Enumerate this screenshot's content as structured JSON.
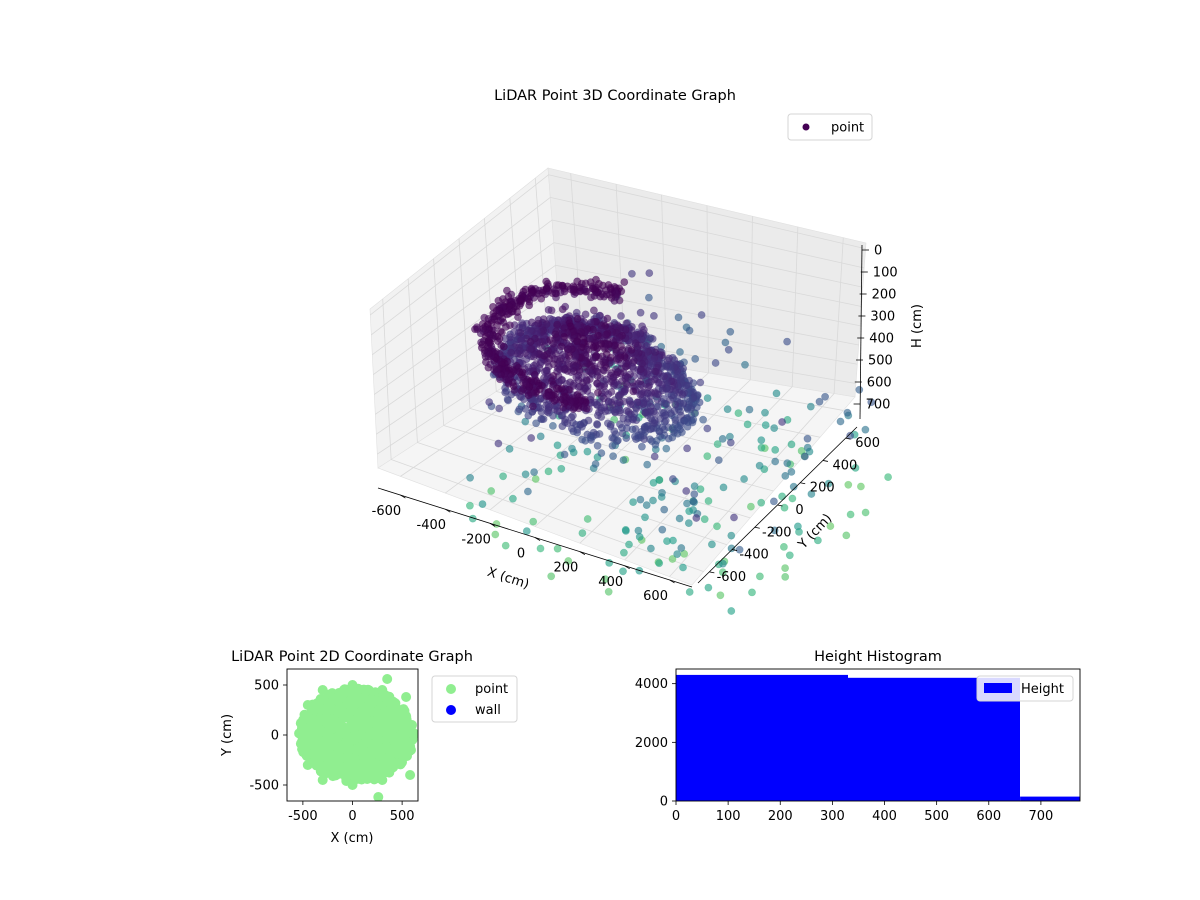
{
  "chart_data": [
    {
      "type": "scatter",
      "projection": "3d",
      "title": "LiDAR Point 3D Coordinate Graph",
      "xlabel": "X (cm)",
      "ylabel": "Y (cm)",
      "zlabel": "H (cm)",
      "xticks": [
        "-600",
        "-400",
        "-200",
        "0",
        "200",
        "400",
        "600"
      ],
      "yticks": [
        "-600",
        "-400",
        "-200",
        "0",
        "200",
        "400",
        "600"
      ],
      "zticks": [
        "0",
        "100",
        "200",
        "300",
        "400",
        "500",
        "600",
        "700"
      ],
      "xlim": [
        -700,
        700
      ],
      "ylim": [
        -700,
        700
      ],
      "zlim": [
        0,
        750
      ],
      "z_axis_inverted": true,
      "colormap": "viridis",
      "grid": true,
      "legend": {
        "position": "top-right",
        "entries": [
          {
            "label": "point",
            "color": "#440154"
          }
        ]
      },
      "series": [
        {
          "name": "point",
          "description": "dense point cloud forming a dome/bowl shape centered near the origin at heights roughly 0-350 cm, with sparse outliers extending to ~700 cm; color encodes height",
          "points": [
            [
              -300,
              100,
              40
            ],
            [
              -200,
              200,
              20
            ],
            [
              -100,
              300,
              15
            ],
            [
              0,
              350,
              10
            ],
            [
              100,
              300,
              15
            ],
            [
              200,
              200,
              30
            ],
            [
              -350,
              -50,
              60
            ],
            [
              -250,
              -200,
              90
            ],
            [
              -150,
              -300,
              120
            ],
            [
              0,
              -250,
              160
            ],
            [
              150,
              -150,
              200
            ],
            [
              250,
              -50,
              220
            ],
            [
              300,
              50,
              150
            ],
            [
              -100,
              0,
              200
            ],
            [
              50,
              100,
              250
            ],
            [
              -50,
              -100,
              300
            ],
            [
              100,
              -50,
              330
            ],
            [
              -450,
              0,
              100
            ],
            [
              500,
              300,
              400
            ],
            [
              550,
              -50,
              480
            ],
            [
              450,
              -350,
              520
            ],
            [
              300,
              -500,
              600
            ],
            [
              200,
              -600,
              650
            ],
            [
              -600,
              -500,
              600
            ],
            [
              600,
              500,
              550
            ],
            [
              400,
              500,
              450
            ],
            [
              350,
              400,
              380
            ],
            [
              150,
              -450,
              500
            ],
            [
              -50,
              -550,
              680
            ]
          ]
        }
      ]
    },
    {
      "type": "scatter",
      "title": "LiDAR Point 2D Coordinate Graph",
      "xlabel": "X (cm)",
      "ylabel": "Y (cm)",
      "xticks": [
        "-500",
        "0",
        "500"
      ],
      "yticks": [
        "-500",
        "0",
        "500"
      ],
      "xlim": [
        -660,
        660
      ],
      "ylim": [
        -660,
        660
      ],
      "legend": {
        "position": "outside-right",
        "entries": [
          {
            "label": "point",
            "color": "#90ee90"
          },
          {
            "label": "wall",
            "color": "#0000ff"
          }
        ]
      },
      "series": [
        {
          "name": "point",
          "color": "#90ee90",
          "description": "dense ellipse of points roughly x from -550 to 650 and y from -500 to 500",
          "points": [
            [
              -500,
              0
            ],
            [
              -450,
              300
            ],
            [
              -450,
              -300
            ],
            [
              -300,
              450
            ],
            [
              -300,
              -450
            ],
            [
              0,
              500
            ],
            [
              0,
              -500
            ],
            [
              300,
              450
            ],
            [
              300,
              -450
            ],
            [
              500,
              200
            ],
            [
              500,
              -200
            ],
            [
              620,
              0
            ],
            [
              350,
              560
            ],
            [
              260,
              -620
            ],
            [
              580,
              -400
            ],
            [
              540,
              380
            ]
          ]
        },
        {
          "name": "wall",
          "color": "#0000ff",
          "points": []
        }
      ]
    },
    {
      "type": "bar",
      "subtype": "histogram",
      "title": "Height Histogram",
      "xlabel": "",
      "ylabel": "",
      "xticks": [
        "0",
        "100",
        "200",
        "300",
        "400",
        "500",
        "600",
        "700"
      ],
      "yticks": [
        "0",
        "2000",
        "4000"
      ],
      "xlim": [
        0,
        775
      ],
      "ylim": [
        0,
        4500
      ],
      "legend": {
        "position": "top-right",
        "entries": [
          {
            "label": "Height",
            "color": "#0000ff"
          }
        ]
      },
      "bins": [
        {
          "start": 0,
          "end": 330,
          "count": 4300
        },
        {
          "start": 330,
          "end": 660,
          "count": 4200
        },
        {
          "start": 660,
          "end": 775,
          "count": 150
        }
      ]
    }
  ]
}
